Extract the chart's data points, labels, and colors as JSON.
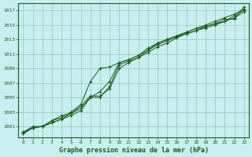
{
  "title": "Graphe pression niveau de la mer (hPa)",
  "bg_color": "#c8eef0",
  "grid_color": "#a0ccc0",
  "line_color": "#1a5c1a",
  "marker_color": "#1a5c1a",
  "xlim": [
    -0.5,
    23.5
  ],
  "ylim": [
    999.5,
    1018.0
  ],
  "yticks": [
    1001,
    1003,
    1005,
    1007,
    1009,
    1011,
    1013,
    1015,
    1017
  ],
  "xticks": [
    0,
    1,
    2,
    3,
    4,
    5,
    6,
    7,
    8,
    9,
    10,
    11,
    12,
    13,
    14,
    15,
    16,
    17,
    18,
    19,
    20,
    21,
    22,
    23
  ],
  "series": [
    [
      1000.0,
      1000.8,
      1001.0,
      1001.8,
      1002.2,
      1003.0,
      1004.0,
      1007.2,
      1009.0,
      1009.2,
      1009.8,
      1010.2,
      1010.8,
      1011.5,
      1012.3,
      1012.8,
      1013.4,
      1013.8,
      1014.2,
      1014.6,
      1015.0,
      1015.5,
      1016.3,
      1017.0
    ],
    [
      1000.0,
      1000.8,
      1001.0,
      1001.5,
      1002.0,
      1002.8,
      1003.8,
      1005.2,
      1005.2,
      1006.2,
      1009.0,
      1009.8,
      1010.5,
      1011.2,
      1012.0,
      1012.5,
      1013.2,
      1013.8,
      1014.2,
      1014.8,
      1015.2,
      1015.8,
      1015.8,
      1017.5
    ],
    [
      1000.2,
      1001.0,
      1001.0,
      1001.8,
      1002.5,
      1002.8,
      1003.5,
      1005.0,
      1005.0,
      1006.5,
      1009.5,
      1010.0,
      1010.5,
      1011.5,
      1012.5,
      1013.0,
      1013.5,
      1014.0,
      1014.5,
      1015.0,
      1015.5,
      1016.0,
      1016.5,
      1017.2
    ],
    [
      1000.2,
      1000.8,
      1001.0,
      1001.5,
      1002.0,
      1002.5,
      1003.2,
      1005.0,
      1005.8,
      1007.2,
      1009.8,
      1010.2,
      1010.8,
      1011.8,
      1012.5,
      1013.0,
      1013.5,
      1014.0,
      1014.5,
      1014.8,
      1015.2,
      1015.5,
      1016.0,
      1016.8
    ]
  ]
}
